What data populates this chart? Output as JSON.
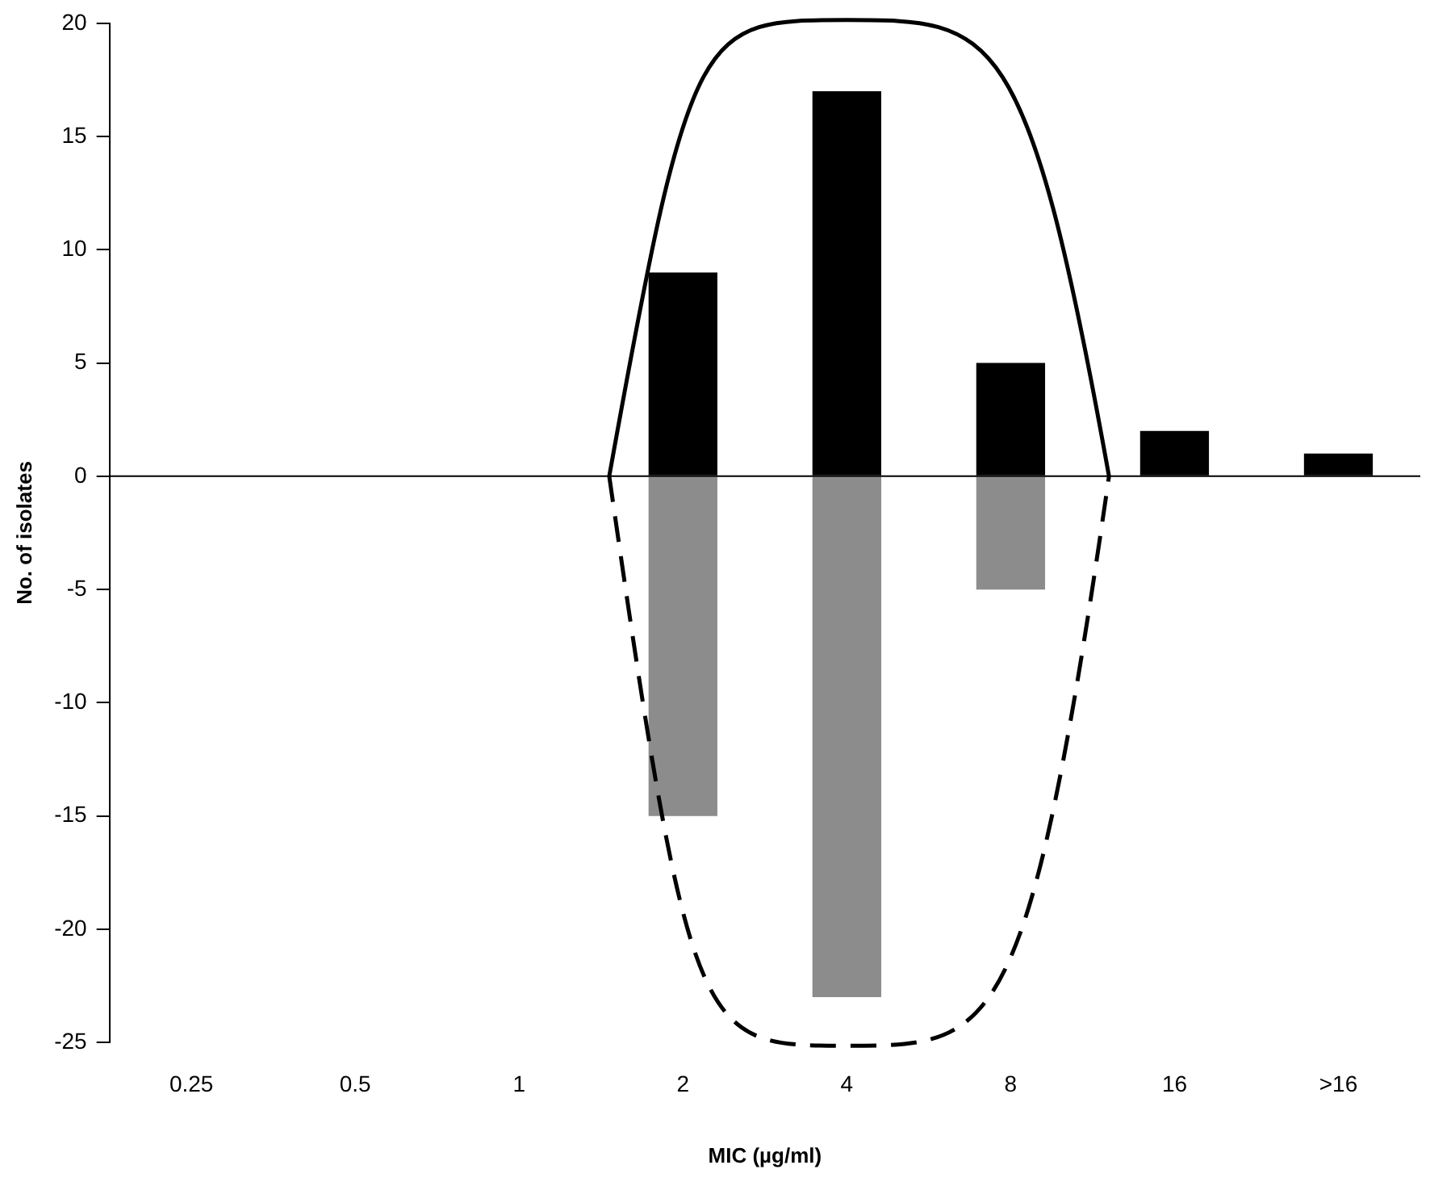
{
  "chart_data": {
    "type": "bar",
    "xlabel": "MIC (µg/ml)",
    "ylabel": "No. of isolates",
    "categories": [
      "0.25",
      "0.5",
      "1",
      "2",
      "4",
      "8",
      "16",
      ">16"
    ],
    "series": [
      {
        "color": "#000000",
        "values": [
          0,
          0,
          0,
          9,
          17,
          5,
          2,
          1
        ]
      },
      {
        "color": "#8c8c8c",
        "values": [
          0,
          0,
          0,
          -15,
          -23,
          -5,
          0,
          0
        ]
      }
    ],
    "stacked": true,
    "ylim": [
      -25,
      20
    ],
    "yticks": [
      -25,
      -20,
      -15,
      -10,
      -5,
      0,
      5,
      10,
      15,
      20
    ],
    "ref_lines": [
      {
        "axis": "y",
        "value": 0,
        "color": "#000000"
      }
    ],
    "grid": false,
    "legend": false
  }
}
